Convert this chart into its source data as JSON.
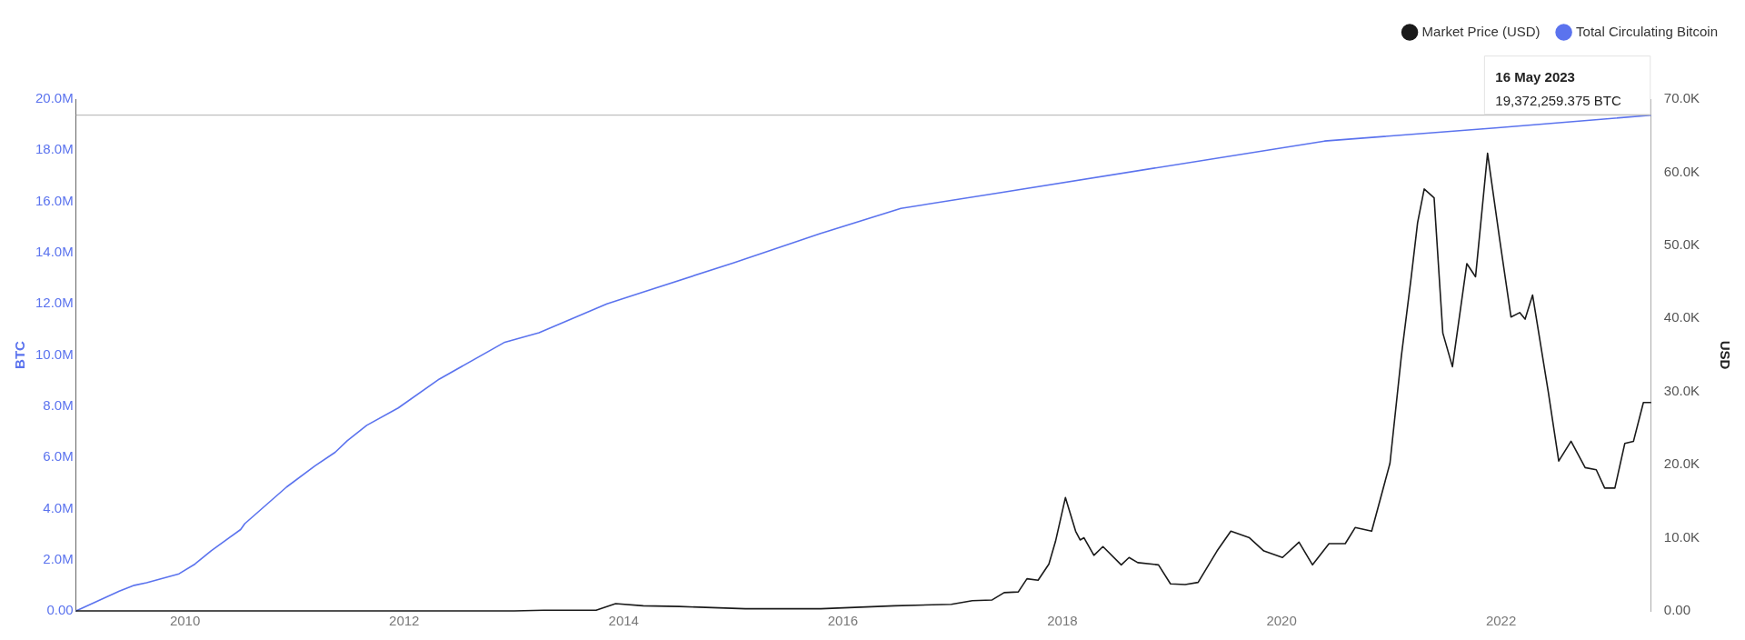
{
  "chart_data": {
    "type": "line",
    "ylabel": "BTC",
    "y2label": "USD",
    "legend": "top right",
    "grid": false,
    "marker": "none",
    "line_style": "solid",
    "xlim": [
      "2009-01-03",
      "2023-05-16"
    ],
    "xticks": [
      "2010",
      "2012",
      "2014",
      "2016",
      "2018",
      "2020",
      "2022"
    ],
    "ylim": [
      0,
      20000000
    ],
    "yticks": [
      {
        "value": 0,
        "label": "0.00"
      },
      {
        "value": 2000000,
        "label": "2.0M"
      },
      {
        "value": 4000000,
        "label": "4.0M"
      },
      {
        "value": 6000000,
        "label": "6.0M"
      },
      {
        "value": 8000000,
        "label": "8.0M"
      },
      {
        "value": 10000000,
        "label": "10.0M"
      },
      {
        "value": 12000000,
        "label": "12.0M"
      },
      {
        "value": 14000000,
        "label": "14.0M"
      },
      {
        "value": 16000000,
        "label": "16.0M"
      },
      {
        "value": 18000000,
        "label": "18.0M"
      },
      {
        "value": 20000000,
        "label": "20.0M"
      }
    ],
    "y2lim": [
      0,
      70000
    ],
    "y2ticks": [
      {
        "value": 0,
        "label": "0.00"
      },
      {
        "value": 10000,
        "label": "10.0K"
      },
      {
        "value": 20000,
        "label": "20.0K"
      },
      {
        "value": 30000,
        "label": "30.0K"
      },
      {
        "value": 40000,
        "label": "40.0K"
      },
      {
        "value": 50000,
        "label": "50.0K"
      },
      {
        "value": 60000,
        "label": "60.0K"
      },
      {
        "value": 70000,
        "label": "70.0K"
      }
    ],
    "ref_lines": [
      {
        "axis": "y",
        "value": 19372259.375,
        "color": "#b0b0b0"
      }
    ],
    "annotations": [
      {
        "text": "16 May 2023\n19,372,259.375 BTC",
        "x": "2023-05-16",
        "y": 19372259.375
      }
    ],
    "series": [
      {
        "name": "Market Price (USD)",
        "color": "#1a1a1a",
        "axis": "y2",
        "x": [
          "2009-01-03",
          "2011-06-10",
          "2013-01-01",
          "2013-04-10",
          "2013-10-01",
          "2013-12-05",
          "2014-03-07",
          "2014-07-05",
          "2015-02-10",
          "2015-10-19",
          "2016-06-21",
          "2016-12-27",
          "2017-03-07",
          "2017-05-12",
          "2017-06-21",
          "2017-08-07",
          "2017-09-05",
          "2017-10-12",
          "2017-11-17",
          "2017-12-09",
          "2018-01-11",
          "2018-02-14",
          "2018-03-01",
          "2018-03-14",
          "2018-04-16",
          "2018-05-16",
          "2018-07-16",
          "2018-08-11",
          "2018-09-09",
          "2018-11-17",
          "2018-12-27",
          "2019-02-14",
          "2019-03-29",
          "2019-05-31",
          "2019-07-16",
          "2019-09-16",
          "2019-11-03",
          "2020-01-04",
          "2020-02-28",
          "2020-04-13",
          "2020-06-07",
          "2020-07-31",
          "2020-09-02",
          "2020-10-27",
          "2020-12-27",
          "2021-02-03",
          "2021-03-07",
          "2021-03-29",
          "2021-04-20",
          "2021-05-23",
          "2021-06-21",
          "2021-07-23",
          "2021-09-09",
          "2021-10-08",
          "2021-11-17",
          "2021-12-27",
          "2022-02-03",
          "2022-03-04",
          "2022-03-22",
          "2022-04-16",
          "2022-06-07",
          "2022-07-12",
          "2022-08-22",
          "2022-10-08",
          "2022-11-14",
          "2022-12-12",
          "2023-01-15",
          "2023-02-17",
          "2023-03-18",
          "2023-04-20",
          "2023-05-16"
        ],
        "values": [
          0,
          0,
          0,
          100,
          100,
          1000,
          700,
          600,
          300,
          300,
          700,
          900,
          1400,
          1500,
          2500,
          2600,
          4400,
          4200,
          6400,
          9500,
          15500,
          10900,
          9700,
          10000,
          7600,
          8800,
          6300,
          7300,
          6600,
          6300,
          3700,
          3600,
          3900,
          8200,
          10900,
          10000,
          8200,
          7300,
          9400,
          6300,
          9200,
          9200,
          11400,
          10900,
          20200,
          34900,
          45400,
          53100,
          57700,
          56500,
          38000,
          33400,
          47500,
          45700,
          62600,
          50900,
          40200,
          40800,
          39900,
          43200,
          30000,
          20500,
          23200,
          19600,
          19300,
          16800,
          16800,
          22900,
          23200,
          28500,
          28500
        ]
      },
      {
        "name": "Total Circulating Bitcoin",
        "color": "#5b73ee",
        "axis": "y",
        "x": [
          "2009-01-03",
          "2009-05-27",
          "2009-07-16",
          "2009-08-26",
          "2009-12-12",
          "2010-02-03",
          "2010-03-29",
          "2010-07-05",
          "2010-07-19",
          "2010-12-05",
          "2011-03-10",
          "2011-05-16",
          "2011-06-25",
          "2011-08-29",
          "2011-12-12",
          "2012-04-27",
          "2012-12-01",
          "2013-03-25",
          "2013-11-06",
          "2014-03-07",
          "2015-01-01",
          "2015-10-19",
          "2016-07-12",
          "2017-06-07",
          "2020-05-23",
          "2021-12-12",
          "2023-05-16"
        ],
        "values": [
          0,
          770000,
          1000000,
          1100000,
          1450000,
          1830000,
          2350000,
          3180000,
          3410000,
          4840000,
          5670000,
          6200000,
          6650000,
          7250000,
          7930000,
          9060000,
          10500000,
          10870000,
          12000000,
          12460000,
          13600000,
          14750000,
          15730000,
          16340000,
          18360000,
          18870000,
          19370000
        ]
      }
    ]
  }
}
